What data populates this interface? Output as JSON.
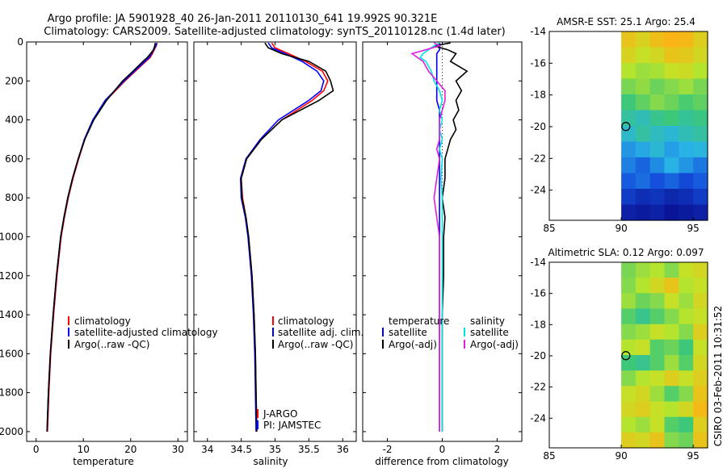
{
  "title_lines": [
    "Argo profile: JA 5901928_40 26-Jan-2011 20110130_641 19.992S 90.321E",
    "Climatology: CARS2009. Satellite-adjusted climatology: synTS_20110128.nc (1.4d later)"
  ],
  "side_label": "CSIRO 03-Feb-2011 10:31:52",
  "colors": {
    "climatology": "#ff0000",
    "satellite": "#0000ff",
    "argo": "#000000",
    "sal_satellite": "#00e5e5",
    "sal_argo": "#e020e0",
    "marker": "#000000"
  },
  "chart_data": [
    {
      "type": "line",
      "id": "temperature",
      "xlabel": "temperature",
      "ylabel": "",
      "xlim": [
        -2,
        32
      ],
      "ylim": [
        2050,
        0
      ],
      "xticks": [
        0,
        10,
        20,
        30
      ],
      "yticks": [
        0,
        200,
        400,
        600,
        800,
        1000,
        1200,
        1400,
        1600,
        1800,
        2000
      ],
      "legend": [
        "climatology",
        "satellite-adjusted climatology",
        "Argo(..raw -QC)"
      ],
      "depth": [
        5,
        20,
        40,
        60,
        80,
        100,
        150,
        200,
        300,
        400,
        500,
        600,
        700,
        800,
        900,
        1000,
        1200,
        1400,
        1600,
        1800,
        2000
      ],
      "series": [
        {
          "name": "climatology",
          "values": [
            25.6,
            25.4,
            25.0,
            24.6,
            24.1,
            23.2,
            21.0,
            18.8,
            14.8,
            12.1,
            10.3,
            9.0,
            7.8,
            6.8,
            6.0,
            5.3,
            4.4,
            3.7,
            3.1,
            2.7,
            2.4
          ]
        },
        {
          "name": "satellite-adjusted climatology",
          "values": [
            25.5,
            25.3,
            24.9,
            24.4,
            23.9,
            23.0,
            20.8,
            18.6,
            14.6,
            12.0,
            10.2,
            8.9,
            7.7,
            6.7,
            5.9,
            5.2,
            4.3,
            3.6,
            3.0,
            2.6,
            2.3
          ]
        },
        {
          "name": "Argo(..raw -QC)",
          "values": [
            25.2,
            25.1,
            24.8,
            24.2,
            23.5,
            22.6,
            20.5,
            18.3,
            14.9,
            12.2,
            10.3,
            8.9,
            7.7,
            6.7,
            5.9,
            5.2,
            4.3,
            3.6,
            3.0,
            2.6,
            2.3
          ]
        }
      ]
    },
    {
      "type": "line",
      "id": "salinity",
      "xlabel": "salinity",
      "ylabel": "",
      "xlim": [
        33.8,
        36.2
      ],
      "ylim": [
        2050,
        0
      ],
      "xticks": [
        34,
        34.5,
        35,
        35.5,
        36
      ],
      "yticks": [
        0,
        200,
        400,
        600,
        800,
        1000,
        1200,
        1400,
        1600,
        1800,
        2000
      ],
      "legend": [
        "climatology",
        "satellite adj. clim.",
        "Argo(..raw -QC)"
      ],
      "annotations": [
        "J-ARGO",
        "PI: JAMSTEC"
      ],
      "depth": [
        5,
        30,
        60,
        100,
        150,
        200,
        250,
        300,
        400,
        500,
        600,
        700,
        800,
        900,
        1000,
        1200,
        1400,
        1600,
        1800,
        2000
      ],
      "series": [
        {
          "name": "climatology",
          "values": [
            34.95,
            35.0,
            35.2,
            35.45,
            35.7,
            35.78,
            35.72,
            35.55,
            35.1,
            34.8,
            34.58,
            34.5,
            34.52,
            34.57,
            34.61,
            34.66,
            34.69,
            34.71,
            34.72,
            34.73
          ]
        },
        {
          "name": "satellite adj. clim.",
          "values": [
            34.9,
            34.95,
            35.15,
            35.4,
            35.62,
            35.72,
            35.68,
            35.5,
            35.05,
            34.78,
            34.57,
            34.49,
            34.5,
            34.56,
            34.6,
            34.65,
            34.68,
            34.7,
            34.71,
            34.72
          ]
        },
        {
          "name": "Argo(..raw -QC)",
          "values": [
            34.85,
            34.9,
            35.1,
            35.5,
            35.75,
            35.82,
            35.86,
            35.65,
            35.1,
            34.8,
            34.58,
            34.5,
            34.51,
            34.57,
            34.61,
            34.66,
            34.69,
            34.71,
            34.72,
            34.73
          ]
        }
      ]
    },
    {
      "type": "line",
      "id": "difference",
      "xlabel": "difference from climatology",
      "ylabel": "",
      "xlim": [
        -2.9,
        2.9
      ],
      "ylim": [
        2050,
        0
      ],
      "xticks": [
        -2,
        0,
        2
      ],
      "yticks": [
        0,
        200,
        400,
        600,
        800,
        1000,
        1200,
        1400,
        1600,
        1800,
        2000
      ],
      "legend": [
        {
          "group": "temperature",
          "items": [
            "satellite",
            "Argo(-adj)"
          ]
        },
        {
          "group": "salinity",
          "items": [
            "satellite",
            "Argo(-adj)"
          ]
        }
      ],
      "depth": [
        5,
        20,
        40,
        60,
        80,
        100,
        150,
        200,
        250,
        300,
        350,
        400,
        450,
        500,
        550,
        600,
        700,
        800,
        900,
        1000,
        1200,
        1400,
        1600,
        1800,
        2000
      ],
      "series": [
        {
          "name": "temperature satellite",
          "values": [
            -0.1,
            -0.1,
            -0.1,
            -0.2,
            -0.2,
            -0.2,
            -0.2,
            -0.2,
            -0.2,
            -0.2,
            -0.1,
            -0.1,
            -0.1,
            -0.1,
            -0.1,
            -0.1,
            -0.1,
            -0.1,
            -0.1,
            -0.1,
            -0.1,
            -0.1,
            -0.1,
            -0.1,
            -0.1
          ]
        },
        {
          "name": "temperature Argo(-adj)",
          "values": [
            0.3,
            -0.3,
            0.2,
            0.5,
            0.4,
            0.3,
            0.9,
            0.5,
            0.7,
            0.5,
            0.6,
            0.4,
            0.5,
            0.3,
            0.2,
            0.1,
            0.1,
            0.0,
            0.1,
            0.05,
            0.05,
            0.0,
            0.0,
            0.0,
            0.0
          ]
        },
        {
          "name": "salinity satellite",
          "values": [
            -0.1,
            -0.3,
            -0.5,
            -0.7,
            -0.8,
            -0.6,
            -0.4,
            -0.3,
            -0.1,
            0.0,
            -0.1,
            0.0,
            -0.1,
            0.0,
            -0.1,
            0.0,
            -0.05,
            0.0,
            0.0,
            0.0,
            0.0,
            0.0,
            0.0,
            0.0,
            0.0
          ]
        },
        {
          "name": "salinity Argo(-adj)",
          "values": [
            -0.3,
            -0.1,
            -0.6,
            -1.1,
            -0.9,
            -0.7,
            -0.5,
            -0.2,
            0.1,
            0.1,
            0.0,
            -0.1,
            -0.1,
            -0.1,
            -0.2,
            -0.1,
            -0.2,
            -0.3,
            -0.2,
            -0.1,
            -0.1,
            -0.1,
            -0.1,
            -0.1,
            -0.1
          ]
        }
      ]
    },
    {
      "type": "heatmap",
      "id": "sst-map",
      "title": "AMSR-E SST: 25.1 Argo: 25.4",
      "xlim": [
        85,
        96
      ],
      "ylim": [
        -25.9,
        -14
      ],
      "xticks": [
        85,
        90,
        95
      ],
      "yticks": [
        -14,
        -16,
        -18,
        -20,
        -22,
        -24
      ],
      "marker": {
        "lon": 90.32,
        "lat": -19.99
      },
      "data_lon_range": [
        90,
        96
      ],
      "zlim": [
        22,
        28
      ],
      "grid": [
        [
          26.8,
          26.5,
          26.9,
          27.1,
          27.0,
          26.6
        ],
        [
          26.5,
          26.2,
          26.4,
          26.8,
          26.7,
          26.4
        ],
        [
          26.0,
          25.8,
          25.9,
          26.2,
          26.3,
          26.0
        ],
        [
          25.5,
          25.7,
          25.4,
          25.6,
          25.8,
          25.5
        ],
        [
          25.0,
          25.3,
          25.6,
          25.4,
          25.1,
          25.3
        ],
        [
          24.6,
          24.4,
          24.8,
          25.0,
          24.7,
          24.9
        ],
        [
          24.2,
          24.6,
          24.3,
          24.1,
          24.4,
          24.6
        ],
        [
          23.6,
          23.8,
          24.1,
          23.7,
          23.9,
          24.0
        ],
        [
          23.4,
          23.1,
          23.5,
          23.9,
          23.6,
          23.3
        ],
        [
          23.0,
          23.2,
          22.9,
          23.1,
          22.8,
          23.0
        ],
        [
          22.6,
          22.4,
          22.5,
          22.3,
          22.4,
          22.6
        ],
        [
          22.2,
          22.1,
          22.2,
          22.0,
          22.1,
          22.2
        ]
      ]
    },
    {
      "type": "heatmap",
      "id": "sla-map",
      "title": "Altimetric SLA: 0.12 Argo: 0.097",
      "xlim": [
        85,
        96
      ],
      "ylim": [
        -25.9,
        -14
      ],
      "xticks": [
        85,
        90,
        95
      ],
      "yticks": [
        -14,
        -16,
        -18,
        -20,
        -22,
        -24
      ],
      "marker": {
        "lon": 90.32,
        "lat": -19.99
      },
      "data_lon_range": [
        90,
        96
      ],
      "zlim": [
        -0.3,
        0.3
      ],
      "grid": [
        [
          0.05,
          0.08,
          0.1,
          0.06,
          0.12,
          0.14
        ],
        [
          0.06,
          0.1,
          0.14,
          0.18,
          0.1,
          0.12
        ],
        [
          0.08,
          0.04,
          0.06,
          0.12,
          0.08,
          0.14
        ],
        [
          0.02,
          -0.02,
          0.02,
          0.06,
          0.1,
          0.12
        ],
        [
          0.06,
          0.08,
          0.12,
          0.1,
          0.06,
          0.16
        ],
        [
          0.1,
          0.12,
          0.02,
          0.04,
          0.0,
          0.12
        ],
        [
          0.0,
          -0.02,
          0.02,
          0.08,
          0.02,
          0.14
        ],
        [
          0.06,
          0.1,
          0.12,
          0.16,
          0.12,
          0.16
        ],
        [
          0.12,
          0.14,
          0.08,
          0.02,
          0.06,
          0.18
        ],
        [
          0.14,
          0.16,
          0.12,
          0.1,
          0.14,
          0.2
        ],
        [
          0.1,
          0.08,
          0.12,
          0.02,
          0.0,
          0.16
        ],
        [
          0.16,
          0.14,
          0.18,
          0.06,
          0.04,
          0.18
        ]
      ]
    }
  ]
}
